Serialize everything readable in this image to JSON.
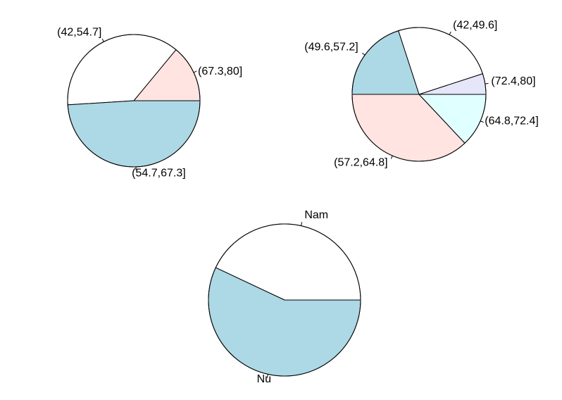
{
  "chart_data": [
    {
      "type": "pie",
      "slices": [
        {
          "label": "(67.3,80]",
          "value": 14,
          "color": "#ffe4e1"
        },
        {
          "label": "(42,54.7]",
          "value": 37,
          "color": "#ffffff"
        },
        {
          "label": "(54.7,67.3]",
          "value": 49,
          "color": "#add8e6"
        }
      ]
    },
    {
      "type": "pie",
      "slices": [
        {
          "label": "(72.4,80]",
          "value": 5,
          "color": "#e6e6fa"
        },
        {
          "label": "(42,49.6]",
          "value": 25,
          "color": "#ffffff"
        },
        {
          "label": "(49.6,57.2]",
          "value": 20,
          "color": "#add8e6"
        },
        {
          "label": "(57.2,64.8]",
          "value": 37,
          "color": "#ffe4e1"
        },
        {
          "label": "(64.8,72.4]",
          "value": 13,
          "color": "#e0ffff"
        }
      ]
    },
    {
      "type": "pie",
      "slices": [
        {
          "label": "Nam",
          "value": 43,
          "color": "#ffffff"
        },
        {
          "label": "Nu",
          "value": 57,
          "color": "#add8e6"
        }
      ]
    }
  ]
}
